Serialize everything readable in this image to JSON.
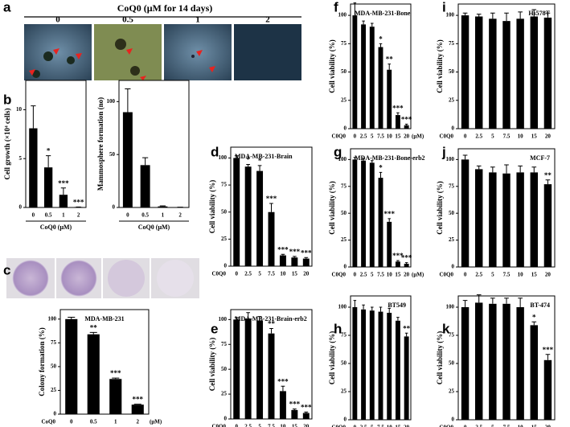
{
  "figure": {
    "a": {
      "letter": "a",
      "title": "CoQ0 (μM for 14 days)",
      "labels": [
        "0",
        "0.5",
        "1",
        "2"
      ]
    },
    "c": {
      "letter": "c"
    }
  },
  "chart_data": [
    {
      "type": "bar",
      "letter": "b",
      "ylabel": "Cell growth (×10⁴ cells)",
      "xlabel": "CoQ0 (μM)",
      "categories": [
        "0",
        "0.5",
        "1",
        "2"
      ],
      "values": [
        8.1,
        4.1,
        1.3,
        0.05
      ],
      "errors": [
        2.3,
        1.2,
        0.7,
        0
      ],
      "annotations": [
        null,
        "*",
        "***",
        "***"
      ],
      "ylim": [
        0,
        13
      ],
      "yticks": [
        0,
        5,
        10
      ],
      "color": "#000000"
    },
    {
      "type": "bar",
      "ylabel": "Mammosphere formation (no)",
      "xlabel": "CoQ0 (μM)",
      "categories": [
        "0",
        "0.5",
        "1",
        "2"
      ],
      "values": [
        90,
        40,
        1,
        0.3
      ],
      "errors": [
        22,
        7,
        0.5,
        0
      ],
      "ylim": [
        0,
        120
      ],
      "yticks": [
        0,
        50,
        100
      ],
      "color": "#000000"
    },
    {
      "type": "bar",
      "title": "MDA-MB-231",
      "ylabel": "Colony formation (%)",
      "x_prefix": "CoQ0",
      "x_unit": "(μM)",
      "categories": [
        "0",
        "0.5",
        "1",
        "2"
      ],
      "values": [
        100,
        84,
        37,
        10
      ],
      "errors": [
        2,
        2,
        1,
        0.5
      ],
      "annotations": [
        null,
        "**",
        "***",
        "***"
      ],
      "ylim": [
        0,
        110
      ],
      "yticks": [
        0,
        25,
        50,
        75,
        100
      ],
      "color": "#000000"
    },
    {
      "type": "bar",
      "letter": "d",
      "title": "MDA-MB-231-Brain",
      "ylabel": "Cell viability (%)",
      "x_prefix": "C0Q0",
      "categories": [
        "0",
        "2.5",
        "5",
        "7.5",
        "10",
        "15",
        "20"
      ],
      "values": [
        100,
        92,
        88,
        50,
        10,
        8,
        7
      ],
      "errors": [
        2,
        2,
        5,
        8,
        1,
        1,
        1
      ],
      "annotations": [
        null,
        "*",
        "*",
        "***",
        "***",
        "***",
        "***"
      ],
      "ylim": [
        0,
        110
      ],
      "yticks": [
        0,
        25,
        50,
        75,
        100
      ],
      "color": "#000000"
    },
    {
      "type": "bar",
      "letter": "e",
      "title": "MDA-MB-231-Brain-erb2",
      "ylabel": "Cell viability (%)",
      "x_prefix": "C0Q0",
      "categories": [
        "0",
        "2.5",
        "5",
        "7.5",
        "10",
        "15",
        "20"
      ],
      "values": [
        100,
        101,
        99,
        86,
        28,
        9,
        6
      ],
      "errors": [
        2,
        6,
        4,
        5,
        5,
        1,
        1
      ],
      "annotations": [
        null,
        null,
        null,
        "**",
        "***",
        "***",
        "***"
      ],
      "ylim": [
        0,
        110
      ],
      "yticks": [
        0,
        25,
        50,
        75,
        100
      ],
      "color": "#000000"
    },
    {
      "type": "bar",
      "letter": "f",
      "title": "MDA-MB-231-Bone",
      "ylabel": "Cell viability (%)",
      "x_prefix": "C0Q0",
      "x_unit": "(μM)",
      "categories": [
        "0",
        "2.5",
        "5",
        "7.5",
        "10",
        "15",
        "20"
      ],
      "values": [
        100,
        92,
        90,
        72,
        52,
        12,
        3
      ],
      "errors": [
        11,
        3,
        3,
        3,
        5,
        2,
        1
      ],
      "annotations": [
        null,
        null,
        null,
        "*",
        "**",
        "***",
        "***"
      ],
      "ylim": [
        0,
        110
      ],
      "yticks": [
        0,
        25,
        50,
        75,
        100
      ],
      "color": "#000000"
    },
    {
      "type": "bar",
      "letter": "g",
      "title": "MDA-MB-231-Bone-erb2",
      "ylabel": "Cell viability (%)",
      "x_prefix": "C0Q0",
      "x_unit": "(μM)",
      "categories": [
        "0",
        "2.5",
        "5",
        "7.5",
        "10",
        "15",
        "20"
      ],
      "values": [
        100,
        99,
        97,
        83,
        42,
        5,
        3
      ],
      "errors": [
        2,
        2,
        2,
        5,
        3,
        1,
        1
      ],
      "annotations": [
        null,
        null,
        null,
        "*",
        "***",
        "***",
        "***"
      ],
      "ylim": [
        0,
        110
      ],
      "yticks": [
        0,
        25,
        50,
        75,
        100
      ],
      "color": "#000000"
    },
    {
      "type": "bar",
      "letter": "h",
      "title": "BT549",
      "ylabel": "Cell viability (%)",
      "x_prefix": "C0Q0",
      "categories": [
        "0",
        "2.5",
        "5",
        "7.5",
        "10",
        "15",
        "20"
      ],
      "values": [
        100,
        98,
        97,
        96,
        95,
        88,
        74
      ],
      "errors": [
        6,
        4,
        3,
        4,
        4,
        3,
        3
      ],
      "annotations": [
        null,
        null,
        null,
        null,
        null,
        null,
        "**"
      ],
      "ylim": [
        0,
        110
      ],
      "yticks": [
        0,
        25,
        50,
        75,
        100
      ],
      "color": "#000000"
    },
    {
      "type": "bar",
      "letter": "i",
      "title": "Hs578T",
      "ylabel": "Cell viability (%)",
      "x_prefix": "C0Q0",
      "categories": [
        "0",
        "2.5",
        "5",
        "7.5",
        "10",
        "15",
        "20"
      ],
      "values": [
        100,
        99,
        97,
        95,
        97,
        99,
        98
      ],
      "errors": [
        2,
        2,
        5,
        7,
        6,
        6,
        4
      ],
      "ylim": [
        0,
        110
      ],
      "yticks": [
        0,
        25,
        50,
        75,
        100
      ],
      "color": "#000000"
    },
    {
      "type": "bar",
      "letter": "j",
      "title": "MCF-7",
      "ylabel": "Cell viability (%)",
      "x_prefix": "C0Q0",
      "categories": [
        "0",
        "2.5",
        "5",
        "7.5",
        "10",
        "15",
        "20"
      ],
      "values": [
        100,
        91,
        88,
        87,
        88,
        88,
        77
      ],
      "errors": [
        4,
        3,
        5,
        8,
        6,
        5,
        4
      ],
      "annotations": [
        null,
        null,
        null,
        null,
        null,
        null,
        "**"
      ],
      "ylim": [
        0,
        110
      ],
      "yticks": [
        0,
        25,
        50,
        75,
        100
      ],
      "color": "#000000"
    },
    {
      "type": "bar",
      "letter": "k",
      "title": "BT-474",
      "ylabel": "Cell viability (%)",
      "x_prefix": "C0Q0",
      "categories": [
        "0",
        "2.5",
        "5",
        "7.5",
        "10",
        "15",
        "20"
      ],
      "values": [
        100,
        104,
        103,
        103,
        100,
        84,
        53
      ],
      "errors": [
        6,
        7,
        5,
        5,
        8,
        3,
        5
      ],
      "annotations": [
        null,
        null,
        null,
        null,
        null,
        "*",
        "***"
      ],
      "ylim": [
        0,
        110
      ],
      "yticks": [
        0,
        25,
        50,
        75,
        100
      ],
      "color": "#000000"
    }
  ]
}
